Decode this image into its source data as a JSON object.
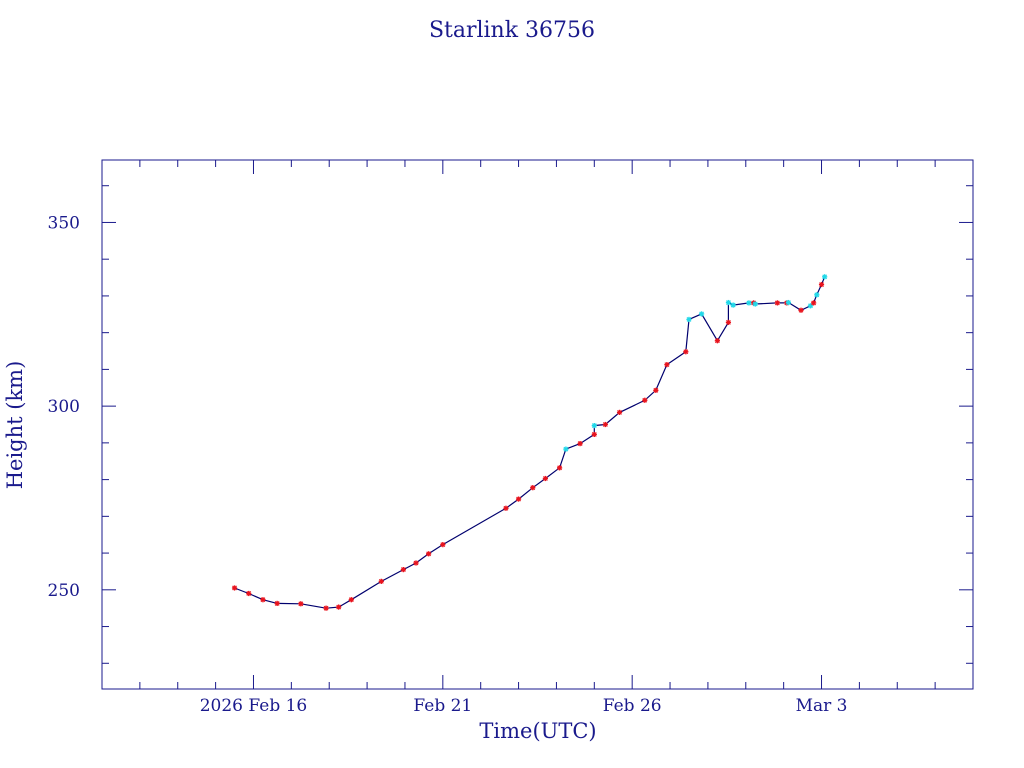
{
  "chart_data": {
    "type": "line",
    "title": "Starlink 36756",
    "xlabel": "Time(UTC)",
    "ylabel": "Height (km)",
    "x_ticks": [
      {
        "x": "2026-02-16",
        "label": "2026 Feb 16"
      },
      {
        "x": "2026-02-21",
        "label": "Feb 21"
      },
      {
        "x": "2026-02-26",
        "label": "Feb 26"
      },
      {
        "x": "2026-03-03",
        "label": "Mar  3"
      }
    ],
    "y_ticks": [
      250,
      300,
      350
    ],
    "xlim": [
      "2026-02-12",
      "2026-03-07"
    ],
    "ylim": [
      223,
      367
    ],
    "grid": false,
    "colors": {
      "axes": "#1a1a8c",
      "line": "#00006e",
      "marker_primary": "#e8141e",
      "marker_secondary": "#22d8e8"
    },
    "series": [
      {
        "x": [
          "2026-02-15T12:00",
          "2026-02-15T21:00",
          "2026-02-16T06:00",
          "2026-02-16T15:00",
          "2026-02-17T06:00",
          "2026-02-17T22:00",
          "2026-02-18T06:00",
          "2026-02-18T14:00",
          "2026-02-19T09:00",
          "2026-02-19T23:00",
          "2026-02-20T07:00",
          "2026-02-20T15:00",
          "2026-02-21T00:00",
          "2026-02-22T16:00",
          "2026-02-23T00:00",
          "2026-02-23T09:00",
          "2026-02-23T17:00",
          "2026-02-24T02:00",
          "2026-02-24T15:00",
          "2026-02-25T00:00",
          "2026-02-25T07:00",
          "2026-02-25T16:00",
          "2026-02-26T08:00",
          "2026-02-26T15:00",
          "2026-02-26T22:00",
          "2026-02-27T10:00",
          "2026-02-28T06:00",
          "2026-02-28T13:00",
          "2026-03-01T05:00",
          "2026-03-01T20:00",
          "2026-03-02T02:00",
          "2026-03-02T11:00",
          "2026-03-02T19:00",
          "2026-03-03T00:00"
        ],
        "values": [
          250.5,
          249,
          247.3,
          246.3,
          246.2,
          245,
          245.3,
          247.3,
          252.3,
          255.5,
          257.3,
          259.8,
          262.3,
          272.2,
          274.7,
          277.8,
          280.3,
          283.2,
          289.8,
          292.3,
          295,
          298.3,
          301.6,
          304.3,
          311.3,
          314.8,
          317.8,
          322.8,
          328.1,
          328.1,
          328.1,
          326.1,
          328.1,
          333.1
        ]
      },
      {
        "x": [
          "2026-02-24T06:00",
          "2026-02-25T00:00",
          "2026-02-27T12:00",
          "2026-02-27T20:00",
          "2026-02-28T13:00",
          "2026-02-28T16:00",
          "2026-03-01T02:00",
          "2026-03-01T06:00",
          "2026-03-02T03:00",
          "2026-03-02T17:00",
          "2026-03-02T21:00",
          "2026-03-03T02:00"
        ],
        "values": [
          288.3,
          294.7,
          323.6,
          325.1,
          328.2,
          327.5,
          328.1,
          327.8,
          328.2,
          327.3,
          330.3,
          335.2
        ]
      }
    ]
  }
}
